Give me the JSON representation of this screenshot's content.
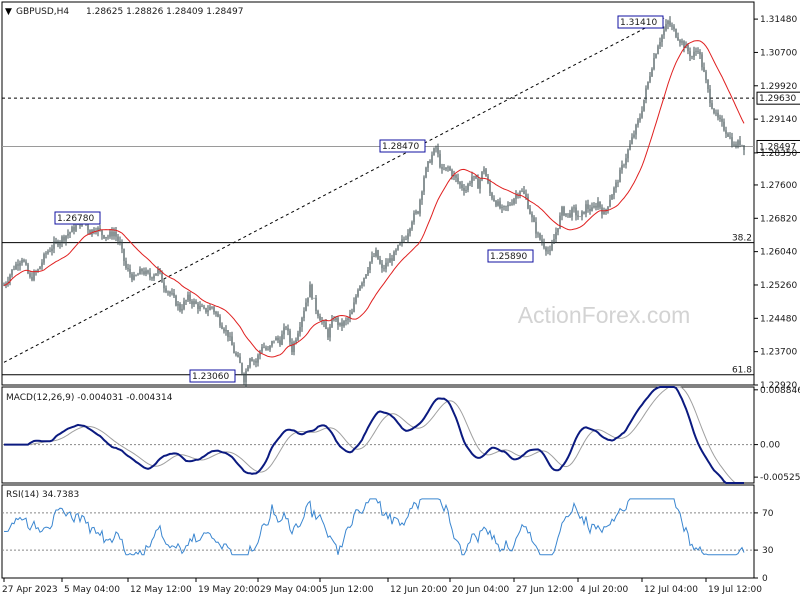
{
  "colors": {
    "candle": "#3c4d50",
    "ma": "#e02020",
    "macd": "#0b1a80",
    "signal": "#a0a0a0",
    "rsi": "#3a86d0",
    "frame": "#000000",
    "label_box": "#1010a0",
    "watermark": "#d3d3d3"
  },
  "header": {
    "symbol": "GBPUSD,H4",
    "ohlc": "1.28625 1.28826 1.28409 1.28497"
  },
  "watermark": "ActionForex.com",
  "chart_data": [
    {
      "type": "candlestick",
      "panel": "price",
      "ylim": [
        1.2292,
        1.3188
      ],
      "y_ticks": [
        "1.31480",
        "1.30700",
        "1.29920",
        "1.29140",
        "1.28350",
        "1.27600",
        "1.26820",
        "1.26040",
        "1.25260",
        "1.24480",
        "1.23700",
        "1.22920"
      ],
      "x_ticks": [
        "27 Apr 2023",
        "5 May 04:00",
        "12 May 12:00",
        "19 May 20:00",
        "29 May 04:00",
        "5 Jun 12:00",
        "12 Jun 20:00",
        "20 Jun 04:00",
        "27 Jun 12:00",
        "4 Jul 20:00",
        "12 Jul 04:00",
        "19 Jul 12:00"
      ],
      "price_points": [
        [
          0,
          1.2525
        ],
        [
          10,
          1.2568
        ],
        [
          18,
          1.259
        ],
        [
          26,
          1.254
        ],
        [
          34,
          1.256
        ],
        [
          42,
          1.26
        ],
        [
          50,
          1.262
        ],
        [
          58,
          1.2635
        ],
        [
          66,
          1.265
        ],
        [
          74,
          1.2668
        ],
        [
          80,
          1.2678
        ],
        [
          86,
          1.265
        ],
        [
          92,
          1.266
        ],
        [
          98,
          1.2645
        ],
        [
          104,
          1.264
        ],
        [
          110,
          1.265
        ],
        [
          116,
          1.262
        ],
        [
          122,
          1.2565
        ],
        [
          130,
          1.254
        ],
        [
          138,
          1.256
        ],
        [
          146,
          1.2545
        ],
        [
          154,
          1.256
        ],
        [
          160,
          1.2525
        ],
        [
          168,
          1.25
        ],
        [
          176,
          1.247
        ],
        [
          184,
          1.2495
        ],
        [
          192,
          1.248
        ],
        [
          200,
          1.2465
        ],
        [
          208,
          1.2475
        ],
        [
          216,
          1.244
        ],
        [
          224,
          1.241
        ],
        [
          230,
          1.237
        ],
        [
          236,
          1.234
        ],
        [
          240,
          1.2306
        ],
        [
          246,
          1.236
        ],
        [
          252,
          1.2345
        ],
        [
          258,
          1.2385
        ],
        [
          264,
          1.237
        ],
        [
          270,
          1.24
        ],
        [
          276,
          1.2395
        ],
        [
          282,
          1.243
        ],
        [
          288,
          1.2375
        ],
        [
          294,
          1.242
        ],
        [
          300,
          1.247
        ],
        [
          306,
          1.252
        ],
        [
          312,
          1.247
        ],
        [
          318,
          1.244
        ],
        [
          324,
          1.241
        ],
        [
          330,
          1.245
        ],
        [
          336,
          1.243
        ],
        [
          342,
          1.244
        ],
        [
          348,
          1.246
        ],
        [
          354,
          1.252
        ],
        [
          360,
          1.2545
        ],
        [
          366,
          1.258
        ],
        [
          372,
          1.26
        ],
        [
          378,
          1.256
        ],
        [
          384,
          1.258
        ],
        [
          390,
          1.2595
        ],
        [
          396,
          1.262
        ],
        [
          402,
          1.264
        ],
        [
          408,
          1.268
        ],
        [
          414,
          1.27
        ],
        [
          420,
          1.278
        ],
        [
          426,
          1.282
        ],
        [
          432,
          1.2847
        ],
        [
          438,
          1.279
        ],
        [
          444,
          1.28
        ],
        [
          450,
          1.278
        ],
        [
          456,
          1.276
        ],
        [
          462,
          1.275
        ],
        [
          468,
          1.278
        ],
        [
          474,
          1.276
        ],
        [
          480,
          1.28
        ],
        [
          486,
          1.274
        ],
        [
          492,
          1.272
        ],
        [
          498,
          1.27
        ],
        [
          504,
          1.271
        ],
        [
          510,
          1.273
        ],
        [
          516,
          1.275
        ],
        [
          522,
          1.273
        ],
        [
          528,
          1.268
        ],
        [
          534,
          1.264
        ],
        [
          540,
          1.262
        ],
        [
          546,
          1.26
        ],
        [
          552,
          1.265
        ],
        [
          558,
          1.27
        ],
        [
          564,
          1.269
        ],
        [
          570,
          1.27
        ],
        [
          576,
          1.268
        ],
        [
          582,
          1.271
        ],
        [
          588,
          1.27
        ],
        [
          594,
          1.272
        ],
        [
          600,
          1.269
        ],
        [
          606,
          1.273
        ],
        [
          612,
          1.276
        ],
        [
          618,
          1.28
        ],
        [
          624,
          1.284
        ],
        [
          630,
          1.288
        ],
        [
          636,
          1.292
        ],
        [
          642,
          1.298
        ],
        [
          648,
          1.304
        ],
        [
          654,
          1.309
        ],
        [
          660,
          1.312
        ],
        [
          664,
          1.3141
        ],
        [
          670,
          1.312
        ],
        [
          676,
          1.31
        ],
        [
          682,
          1.308
        ],
        [
          688,
          1.306
        ],
        [
          694,
          1.308
        ],
        [
          700,
          1.302
        ],
        [
          706,
          1.296
        ],
        [
          712,
          1.292
        ],
        [
          718,
          1.29
        ],
        [
          724,
          1.288
        ],
        [
          730,
          1.285
        ],
        [
          736,
          1.286
        ],
        [
          740,
          1.285
        ]
      ],
      "annotations": [
        {
          "label": "1.26780",
          "price": 1.2678
        },
        {
          "label": "1.23060",
          "price": 1.2306
        },
        {
          "label": "1.28470",
          "price": 1.2847
        },
        {
          "label": "1.25890",
          "price": 1.2589
        },
        {
          "label": "1.31410",
          "price": 1.3141
        }
      ],
      "levels": [
        {
          "price": 1.2963,
          "label": "1.29630",
          "style": "dashed"
        },
        {
          "price": 1.285,
          "label": "1.28497",
          "style": "solid-light"
        },
        {
          "price": 1.2625,
          "label": "38.2",
          "style": "solid"
        },
        {
          "price": 1.2316,
          "label": "61.8",
          "style": "solid"
        }
      ]
    },
    {
      "type": "line",
      "panel": "macd",
      "title": "MACD(12,26,9) -0.004031 -0.004314",
      "ylim": [
        -0.0062,
        0.0093
      ],
      "y_ticks": [
        "0.008846",
        "0.00",
        "-0.005252"
      ],
      "zero_level": 0.0
    },
    {
      "type": "line",
      "panel": "rsi",
      "title": "RSI(14) 34.7383",
      "ylim": [
        0,
        100
      ],
      "y_ticks": [
        "70",
        "30",
        "0"
      ],
      "levels": [
        70,
        30
      ]
    }
  ]
}
